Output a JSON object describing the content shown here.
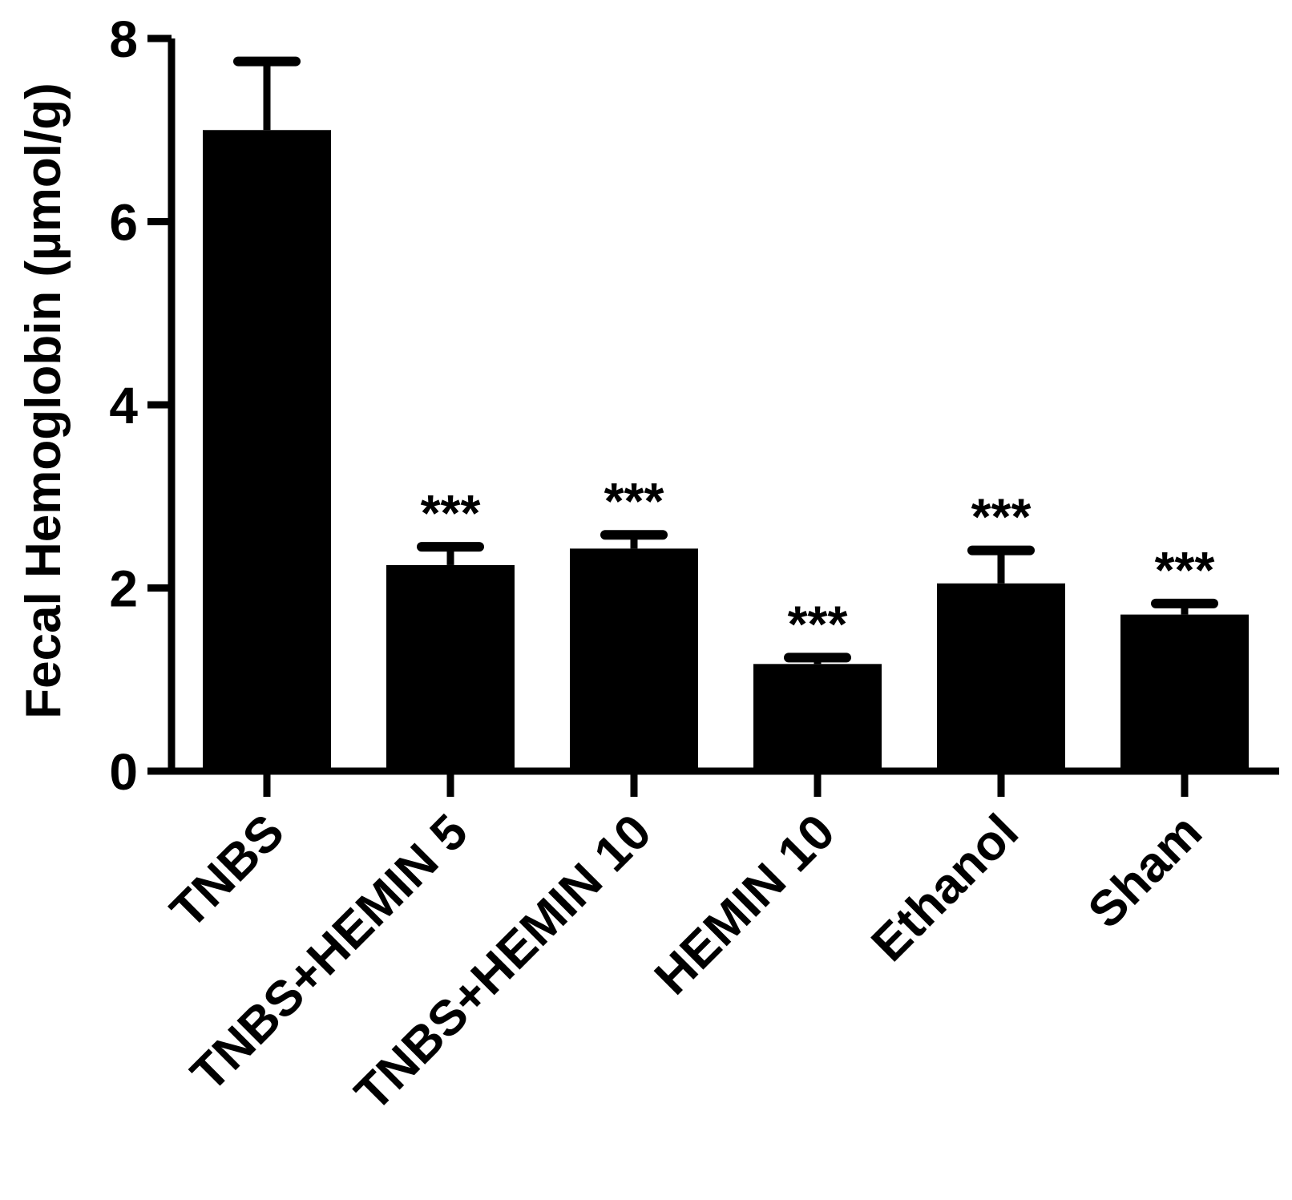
{
  "chart_data": {
    "type": "bar",
    "categories": [
      "TNBS",
      "TNBS+HEMIN 5",
      "TNBS+HEMIN 10",
      "HEMIN 10",
      "Ethanol",
      "Sham"
    ],
    "values": [
      7.0,
      2.25,
      2.43,
      1.17,
      2.05,
      1.71
    ],
    "error_upper": [
      7.75,
      2.45,
      2.58,
      1.24,
      2.41,
      1.83
    ],
    "annotations": [
      "",
      "***",
      "***",
      "***",
      "***",
      "***"
    ],
    "ylabel": "Fecal Hemoglobin (µmol/g)",
    "xlabel": "",
    "ylim": [
      0,
      8
    ],
    "yticks": [
      0,
      2,
      4,
      6,
      8
    ],
    "ytick_labels": [
      "0",
      "2",
      "4",
      "6",
      "8"
    ],
    "grid": false,
    "bar_color": "#000000"
  }
}
